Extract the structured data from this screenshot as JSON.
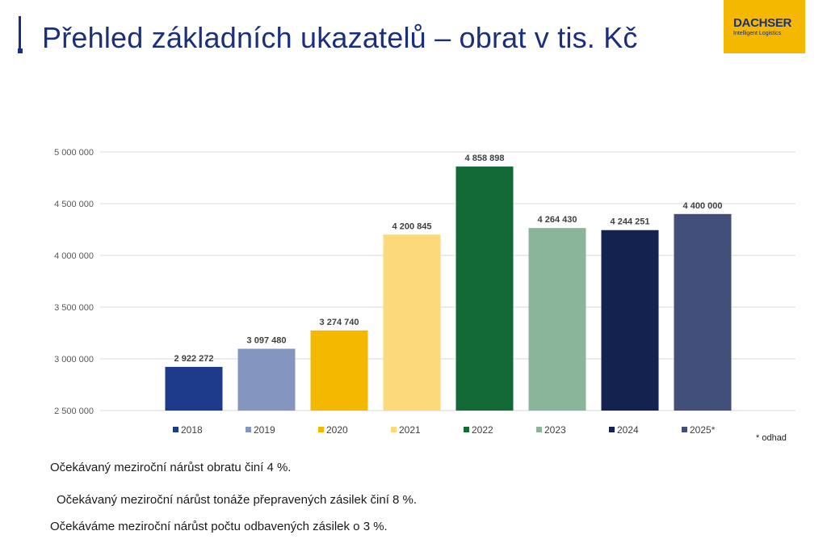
{
  "header": {
    "title": "Přehled základních ukazatelů – obrat v tis. Kč",
    "logo_name": "DACHSER",
    "logo_tagline": "Intelligent Logistics"
  },
  "chart_data": {
    "type": "bar",
    "categories": [
      "2018",
      "2019",
      "2020",
      "2021",
      "2022",
      "2023",
      "2024",
      "2025*"
    ],
    "values": [
      2922272,
      3097480,
      3274740,
      4200845,
      4858898,
      4264430,
      4244251,
      4400000
    ],
    "data_labels": [
      "2 922 272",
      "3 097 480",
      "3 274 740",
      "4 200 845",
      "4 858 898",
      "4 264 430",
      "4 244 251",
      "4 400 000"
    ],
    "colors": [
      "#1e3a8a",
      "#8495c0",
      "#f5b800",
      "#fcd97a",
      "#136a37",
      "#8ab59b",
      "#14224f",
      "#414f7a"
    ],
    "yticks": [
      2500000,
      3000000,
      3500000,
      4000000,
      4500000,
      5000000
    ],
    "ytick_labels": [
      "2 500 000",
      "3 000 000",
      "3 500 000",
      "4 000 000",
      "4 500 000",
      "5 000 000"
    ],
    "ylim": [
      2500000,
      5000000
    ],
    "grid": true,
    "legend_position": "bottom",
    "footnote": "* odhad"
  },
  "notes": [
    "Očekávaný meziroční nárůst obratu činí 4 %.",
    "Očekávaný meziroční nárůst tonáže přepravených zásilek činí 8 %.",
    "Očekáváme meziroční nárůst počtu odbavených zásilek o 3 %."
  ]
}
